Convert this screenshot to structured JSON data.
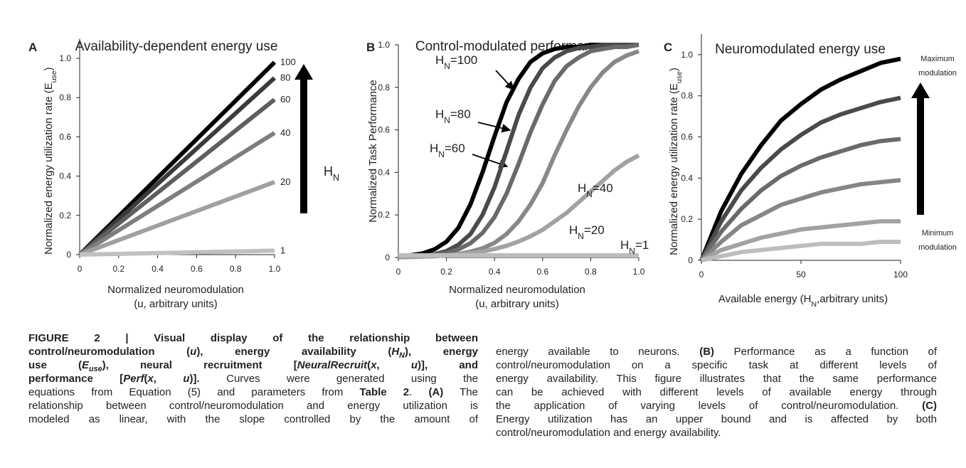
{
  "chart_data": [
    {
      "type": "line",
      "panel": "A",
      "title": "Availability-dependent energy use",
      "xlabel": [
        "Normalized neuromodulation",
        "(u, arbitrary units)"
      ],
      "ylabel": {
        "main": "Normalized energy utilization rate (E",
        "sub": "use",
        "rest": ")"
      },
      "x": [
        0,
        1
      ],
      "series": [
        {
          "name": "100",
          "color": "#000000",
          "values": [
            0,
            0.98
          ]
        },
        {
          "name": "80",
          "color": "#3b3b3b",
          "values": [
            0,
            0.9
          ]
        },
        {
          "name": "60",
          "color": "#5e5e5e",
          "values": [
            0,
            0.79
          ]
        },
        {
          "name": "40",
          "color": "#7e7e7e",
          "values": [
            0,
            0.62
          ]
        },
        {
          "name": "20",
          "color": "#a0a0a0",
          "values": [
            0,
            0.37
          ]
        },
        {
          "name": "1",
          "color": "#c0c0c0",
          "values": [
            0,
            0.02
          ]
        }
      ],
      "xlim": [
        0,
        1
      ],
      "ylim": [
        0,
        1.1
      ],
      "xticks": [
        0,
        0.2,
        0.4,
        0.6,
        0.8,
        {
          "value": 1,
          "label": "1.0"
        }
      ],
      "yticks": [
        0,
        0.2,
        0.4,
        0.6,
        0.8,
        {
          "value": 1,
          "label": "1.0"
        }
      ],
      "annotations": [
        {
          "main": "H",
          "sub": "N"
        }
      ]
    },
    {
      "type": "line",
      "panel": "B",
      "title": "Control-modulated performance",
      "xlabel": [
        "Normalized neuromodulation",
        "(u, arbitrary units)"
      ],
      "ylabel": {
        "main": "Normalized Task Performance"
      },
      "x": [
        0,
        0.05,
        0.1,
        0.15,
        0.2,
        0.25,
        0.3,
        0.35,
        0.4,
        0.45,
        0.5,
        0.55,
        0.6,
        0.65,
        0.7,
        0.75,
        0.8,
        0.85,
        0.9,
        0.95,
        1
      ],
      "series": [
        {
          "color": "#000000",
          "values": [
            0.005,
            0.01,
            0.019,
            0.038,
            0.074,
            0.14,
            0.25,
            0.4,
            0.57,
            0.73,
            0.84,
            0.92,
            0.96,
            0.98,
            0.99,
            0.99,
            1,
            1,
            1,
            1,
            1
          ]
        },
        {
          "color": "#4a4a4a",
          "values": [
            0.002,
            0.004,
            0.007,
            0.015,
            0.03,
            0.06,
            0.11,
            0.2,
            0.33,
            0.5,
            0.67,
            0.8,
            0.89,
            0.94,
            0.97,
            0.985,
            0.99,
            1,
            1,
            1,
            1
          ]
        },
        {
          "color": "#6a6a6a",
          "values": [
            0.002,
            0.004,
            0.006,
            0.012,
            0.021,
            0.038,
            0.067,
            0.115,
            0.19,
            0.3,
            0.44,
            0.59,
            0.72,
            0.83,
            0.9,
            0.94,
            0.97,
            0.98,
            0.99,
            0.99,
            1
          ]
        },
        {
          "color": "#888888",
          "values": [
            0.001,
            0.002,
            0.004,
            0.006,
            0.01,
            0.016,
            0.027,
            0.043,
            0.069,
            0.11,
            0.17,
            0.25,
            0.35,
            0.48,
            0.6,
            0.71,
            0.8,
            0.87,
            0.92,
            0.95,
            0.97
          ]
        },
        {
          "color": "#a2a2a2",
          "values": [
            0.002,
            0.003,
            0.005,
            0.007,
            0.01,
            0.014,
            0.02,
            0.028,
            0.04,
            0.055,
            0.075,
            0.1,
            0.13,
            0.17,
            0.21,
            0.26,
            0.31,
            0.36,
            0.41,
            0.45,
            0.48
          ]
        },
        {
          "color": "#bdbdbd",
          "values": [
            0.01,
            0.01,
            0.01,
            0.01,
            0.01,
            0.01,
            0.01,
            0.01,
            0.01,
            0.01,
            0.01,
            0.01,
            0.01,
            0.01,
            0.01,
            0.01,
            0.01,
            0.01,
            0.01,
            0.01,
            0.01
          ]
        }
      ],
      "xlim": [
        0,
        1
      ],
      "ylim": [
        0,
        1
      ],
      "xticks": [
        0,
        0.2,
        0.4,
        0.6,
        0.8,
        {
          "value": 1,
          "label": "1.0"
        }
      ],
      "yticks": [
        0,
        0.2,
        0.4,
        0.6,
        0.8,
        {
          "value": 1,
          "label": "1.0"
        }
      ],
      "annotations": [
        {
          "main": "H",
          "sub": "N",
          "rest": "=100"
        },
        {
          "main": "H",
          "sub": "N",
          "rest": "=80"
        },
        {
          "main": "H",
          "sub": "N",
          "rest": "=60"
        },
        {
          "main": "H",
          "sub": "N",
          "rest": "=40"
        },
        {
          "main": "H",
          "sub": "N",
          "rest": "=20"
        },
        {
          "main": "H",
          "sub": "N",
          "rest": "=1"
        }
      ]
    },
    {
      "type": "line",
      "panel": "C",
      "title": "Neuromodulated energy use",
      "xlabel": {
        "main": "Available energy (H",
        "sub": "N",
        "rest": ",arbitrary units)"
      },
      "ylabel": {
        "main": "Normalized energy utilization rate (E",
        "sub": "use",
        "rest": ")"
      },
      "x": [
        0,
        10,
        20,
        30,
        40,
        50,
        60,
        70,
        80,
        90,
        100
      ],
      "series": [
        {
          "color": "#000000",
          "values": [
            0,
            0.24,
            0.42,
            0.56,
            0.68,
            0.76,
            0.83,
            0.88,
            0.92,
            0.96,
            0.98
          ]
        },
        {
          "color": "#4a4a4a",
          "values": [
            0,
            0.19,
            0.34,
            0.45,
            0.54,
            0.61,
            0.67,
            0.71,
            0.74,
            0.77,
            0.79
          ]
        },
        {
          "color": "#6a6a6a",
          "values": [
            0,
            0.14,
            0.25,
            0.34,
            0.41,
            0.46,
            0.5,
            0.53,
            0.56,
            0.58,
            0.59
          ]
        },
        {
          "color": "#868686",
          "values": [
            0,
            0.09,
            0.17,
            0.22,
            0.27,
            0.3,
            0.33,
            0.35,
            0.37,
            0.38,
            0.39
          ]
        },
        {
          "color": "#a2a2a2",
          "values": [
            0,
            0.05,
            0.08,
            0.11,
            0.13,
            0.15,
            0.16,
            0.17,
            0.18,
            0.19,
            0.19
          ]
        },
        {
          "color": "#bdbdbd",
          "values": [
            0,
            0.02,
            0.04,
            0.05,
            0.06,
            0.07,
            0.08,
            0.08,
            0.08,
            0.09,
            0.09
          ]
        }
      ],
      "xlim": [
        0,
        100
      ],
      "ylim": [
        0,
        1.1
      ],
      "xticks": [
        0,
        50,
        100
      ],
      "yticks": [
        0,
        0.2,
        0.4,
        0.6,
        0.8,
        {
          "value": 1,
          "label": "1.0"
        }
      ],
      "annotations": [
        [
          "Maximum",
          "modulation"
        ],
        [
          "Minimum",
          "modulation"
        ]
      ]
    }
  ],
  "caption": {
    "columns": [
      [
        [
          {
            "text": "FIGURE 2 | Visual display of the relationship between",
            "style": "b"
          }
        ],
        [
          {
            "text": "control/neuromodulation (",
            "style": "b"
          },
          {
            "text": "u",
            "style": "bi"
          },
          {
            "text": "), energy availability (",
            "style": "b"
          },
          {
            "text": "H",
            "style": "bi"
          },
          {
            "text": "N",
            "style": "bis"
          },
          {
            "text": "), energy",
            "style": "b"
          }
        ],
        [
          {
            "text": "use (",
            "style": "b"
          },
          {
            "text": "E",
            "style": "bi"
          },
          {
            "text": "use",
            "style": "bis"
          },
          {
            "text": "), neural recruitment [",
            "style": "b"
          },
          {
            "text": "NeuralRecruit",
            "style": "bi"
          },
          {
            "text": "(",
            "style": "b"
          },
          {
            "text": "x",
            "style": "bi"
          },
          {
            "text": ", ",
            "style": "b"
          },
          {
            "text": "u",
            "style": "bi"
          },
          {
            "text": ")], and",
            "style": "b"
          }
        ],
        [
          {
            "text": "performance [",
            "style": "b"
          },
          {
            "text": "Perf",
            "style": "bi"
          },
          {
            "text": "(",
            "style": "b"
          },
          {
            "text": "x",
            "style": "bi"
          },
          {
            "text": ", ",
            "style": "b"
          },
          {
            "text": "u",
            "style": "bi"
          },
          {
            "text": ")].",
            "style": "b"
          },
          {
            "text": " Curves were generated using the"
          }
        ],
        [
          {
            "text": "equations from Equation (5) and parameters from "
          },
          {
            "text": "Table 2",
            "style": "b"
          },
          {
            "text": ". "
          },
          {
            "text": "(A)",
            "style": "b"
          },
          {
            "text": " The"
          }
        ],
        [
          {
            "text": "relationship between control/neuromodulation and energy utilization is"
          }
        ],
        [
          {
            "text": "modeled as linear, with the slope controlled by the amount of"
          }
        ]
      ],
      [
        [
          {
            "text": "energy available to neurons. "
          },
          {
            "text": "(B)",
            "style": "b"
          },
          {
            "text": " Performance as a function of"
          }
        ],
        [
          {
            "text": "control/neuromodulation on a specific task at different levels of"
          }
        ],
        [
          {
            "text": "energy availability. This figure illustrates that the same performance"
          }
        ],
        [
          {
            "text": "can be achieved with different levels of available energy through"
          }
        ],
        [
          {
            "text": "the application of varying levels of control/neuromodulation. "
          },
          {
            "text": "(C)",
            "style": "b"
          }
        ],
        [
          {
            "text": "Energy utilization has an upper bound and is affected by both"
          }
        ],
        [
          {
            "text": "control/neuromodulation and energy availability."
          }
        ]
      ]
    ]
  }
}
